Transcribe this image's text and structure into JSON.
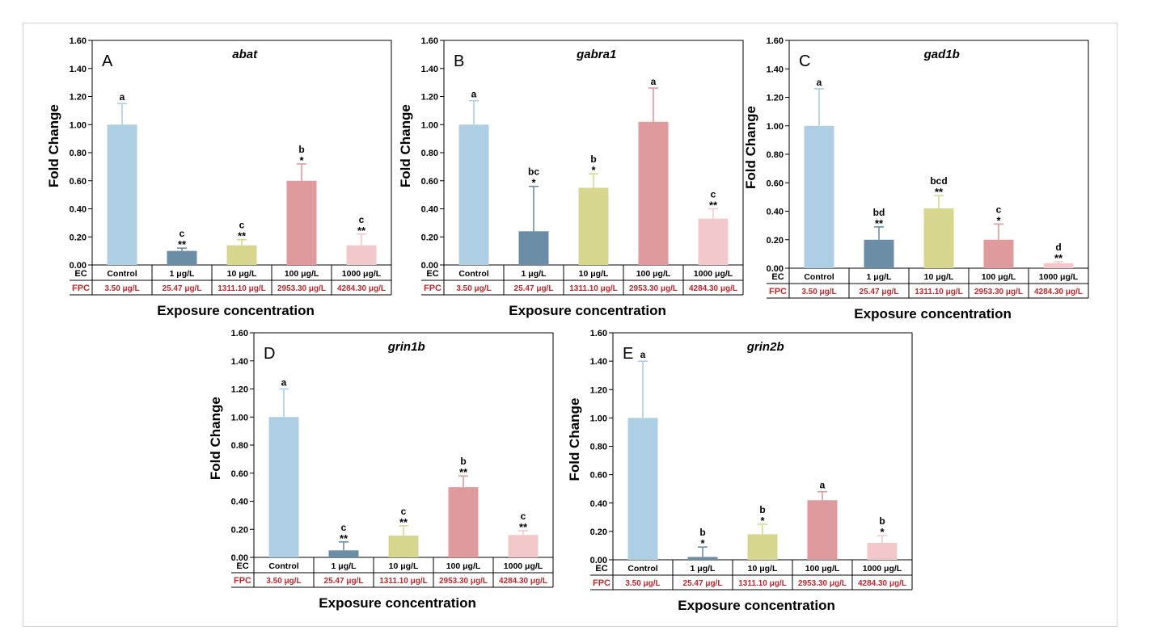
{
  "colors": {
    "bars": [
      "#aecfe3",
      "#6b8ea6",
      "#d7d78f",
      "#de9a9c",
      "#f3c8cb"
    ],
    "errorbars": [
      "#aecfe3",
      "#6b8ea6",
      "#d7d78f",
      "#de9a9c",
      "#f3c8cb"
    ],
    "fpc_text": "#c0272d",
    "axis": "#000000"
  },
  "shared": {
    "ylabel": "Fold Change",
    "xlabel": "Exposure concentration",
    "row_ec": "EC",
    "row_fpc": "FPC",
    "ec_labels": [
      "Control",
      "1 μg/L",
      "10 μg/L",
      "100 μg/L",
      "1000 μg/L"
    ],
    "fpc_labels": [
      "3.50 μg/L",
      "25.47 μg/L",
      "1311.10 μg/L",
      "2953.30 μg/L",
      "4284.30 μg/L"
    ]
  },
  "chart_data": [
    {
      "type": "bar",
      "panel": "A",
      "title": "abat",
      "ylim": [
        0,
        1.6
      ],
      "yticks": [
        "0.00",
        "0.20",
        "0.40",
        "0.60",
        "0.80",
        "1.00",
        "1.20",
        "1.40",
        "1.60"
      ],
      "categories": [
        "Control",
        "1 μg/L",
        "10 μg/L",
        "100 μg/L",
        "1000 μg/L"
      ],
      "values": [
        1.0,
        0.1,
        0.14,
        0.6,
        0.14
      ],
      "errors": [
        0.15,
        0.02,
        0.04,
        0.12,
        0.08
      ],
      "letters": [
        "a",
        "c",
        "c",
        "b",
        "c"
      ],
      "stars": [
        "",
        "**",
        "**",
        "*",
        "**"
      ]
    },
    {
      "type": "bar",
      "panel": "B",
      "title": "gabra1",
      "ylim": [
        0,
        1.6
      ],
      "yticks": [
        "0.00",
        "0.20",
        "0.40",
        "0.60",
        "0.80",
        "1.00",
        "1.20",
        "1.40",
        "1.60"
      ],
      "categories": [
        "Control",
        "1 μg/L",
        "10 μg/L",
        "100 μg/L",
        "1000 μg/L"
      ],
      "values": [
        1.0,
        0.24,
        0.55,
        1.02,
        0.33
      ],
      "errors": [
        0.17,
        0.32,
        0.1,
        0.24,
        0.07
      ],
      "letters": [
        "a",
        "bc",
        "b",
        "a",
        "c"
      ],
      "stars": [
        "",
        "*",
        "*",
        "",
        "**"
      ]
    },
    {
      "type": "bar",
      "panel": "C",
      "title": "gad1b",
      "ylim": [
        0,
        1.6
      ],
      "yticks": [
        "0.00",
        "0.20",
        "0.40",
        "0.60",
        "0.80",
        "1.00",
        "1.20",
        "1.40",
        "1.60"
      ],
      "categories": [
        "Control",
        "1 μg/L",
        "10 μg/L",
        "100 μg/L",
        "1000 μg/L"
      ],
      "values": [
        1.0,
        0.2,
        0.42,
        0.2,
        0.035
      ],
      "errors": [
        0.26,
        0.09,
        0.09,
        0.11,
        0.01
      ],
      "letters": [
        "a",
        "bd",
        "bcd",
        "c",
        "d"
      ],
      "stars": [
        "",
        "**",
        "**",
        "*",
        "**"
      ]
    },
    {
      "type": "bar",
      "panel": "D",
      "title": "grin1b",
      "ylim": [
        0,
        1.6
      ],
      "yticks": [
        "0.00",
        "0.20",
        "0.40",
        "0.60",
        "0.80",
        "1.00",
        "1.20",
        "1.40",
        "1.60"
      ],
      "categories": [
        "Control",
        "1 μg/L",
        "10 μg/L",
        "100 μg/L",
        "1000 μg/L"
      ],
      "values": [
        1.0,
        0.05,
        0.155,
        0.5,
        0.16
      ],
      "errors": [
        0.2,
        0.06,
        0.07,
        0.08,
        0.03
      ],
      "letters": [
        "a",
        "c",
        "c",
        "b",
        "c"
      ],
      "stars": [
        "",
        "**",
        "**",
        "**",
        "**"
      ]
    },
    {
      "type": "bar",
      "panel": "E",
      "title": "grin2b",
      "ylim": [
        0,
        1.6
      ],
      "yticks": [
        "0.00",
        "0.20",
        "0.40",
        "0.60",
        "0.80",
        "1.00",
        "1.20",
        "1.40",
        "1.60"
      ],
      "categories": [
        "Control",
        "1 μg/L",
        "10 μg/L",
        "100 μg/L",
        "1000 μg/L"
      ],
      "values": [
        1.0,
        0.02,
        0.18,
        0.42,
        0.12
      ],
      "errors": [
        0.4,
        0.07,
        0.07,
        0.06,
        0.05
      ],
      "letters": [
        "a",
        "b",
        "b",
        "a",
        "b"
      ],
      "stars": [
        "",
        "*",
        "*",
        "",
        "*"
      ]
    }
  ]
}
